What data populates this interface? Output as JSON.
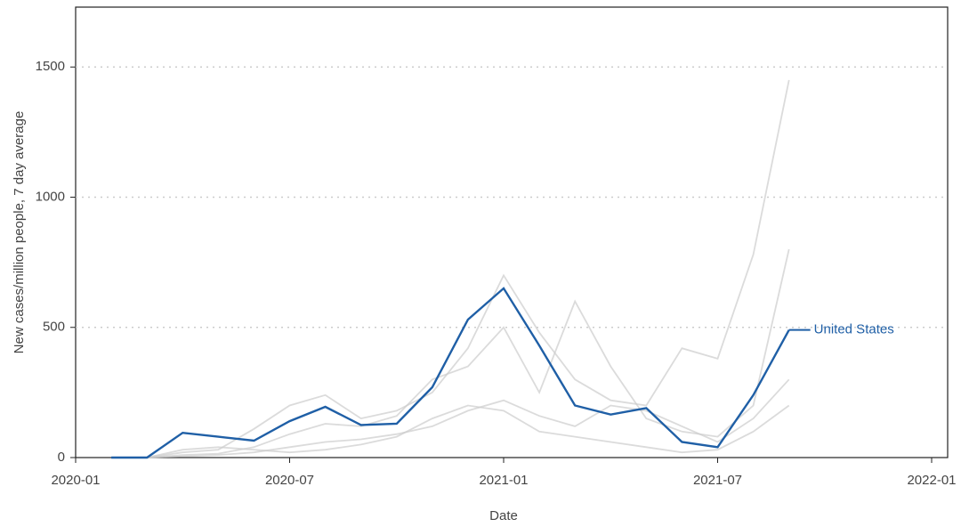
{
  "chart_data": {
    "type": "line",
    "x_label": "Date",
    "y_label": "New cases/million people, 7 day average",
    "x": [
      "2020-02",
      "2020-03",
      "2020-04",
      "2020-05",
      "2020-06",
      "2020-07",
      "2020-08",
      "2020-09",
      "2020-10",
      "2020-11",
      "2020-12",
      "2021-01",
      "2021-02",
      "2021-03",
      "2021-04",
      "2021-05",
      "2021-06",
      "2021-07",
      "2021-08",
      "2021-09"
    ],
    "series": [
      {
        "name": "United States",
        "color": "#1f5fa6",
        "values": [
          0,
          0,
          95,
          80,
          65,
          140,
          195,
          125,
          130,
          270,
          530,
          650,
          430,
          200,
          165,
          190,
          60,
          40,
          240,
          490
        ]
      },
      {
        "color": "#cccccc",
        "values": [
          null,
          0,
          20,
          30,
          110,
          200,
          240,
          150,
          180,
          250,
          420,
          700,
          480,
          300,
          220,
          200,
          420,
          380,
          780,
          1450
        ]
      },
      {
        "color": "#cccccc",
        "values": [
          null,
          0,
          10,
          15,
          40,
          90,
          130,
          120,
          160,
          300,
          350,
          500,
          250,
          600,
          350,
          150,
          100,
          80,
          200,
          800
        ]
      },
      {
        "color": "#cccccc",
        "values": [
          null,
          0,
          5,
          10,
          20,
          40,
          60,
          70,
          90,
          120,
          180,
          220,
          160,
          120,
          200,
          180,
          120,
          60,
          150,
          300
        ]
      },
      {
        "color": "#cccccc",
        "values": [
          null,
          0,
          30,
          40,
          30,
          20,
          30,
          50,
          80,
          150,
          200,
          180,
          100,
          80,
          60,
          40,
          20,
          30,
          100,
          200
        ]
      }
    ],
    "xlim": [
      "2020-01",
      "2022-01"
    ],
    "xticks": [
      "2020-01",
      "2020-07",
      "2021-01",
      "2021-07",
      "2022-01"
    ],
    "ylim": [
      0,
      1730
    ],
    "yticks": [
      0,
      500,
      1000,
      1500
    ],
    "grid": true
  }
}
